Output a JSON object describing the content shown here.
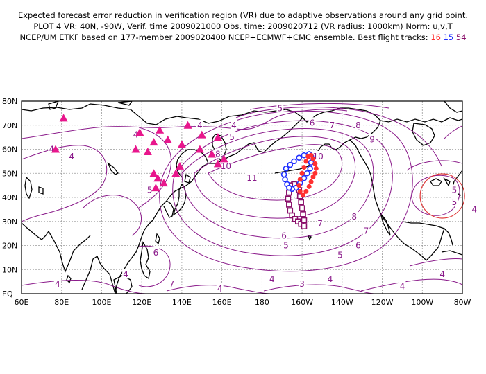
{
  "header": {
    "line1": "Expected forecast error reduction in verification region (VR) due to adaptive observations around any grid point.",
    "line2": "PLOT 4 VR: 40N, -90W, Verif. time 2009021000 Obs. time: 2009020712 (VR radius: 1000km) Norm: u,v,T",
    "line3_prefix": "NCEP/UM ETKF based on 177-member 2009020400 NCEP+ECMWF+CMC ensemble. Best flight tracks:",
    "track_red": "16",
    "track_blue": "15",
    "track_purple": "54"
  },
  "colors": {
    "contour": "#8a1a8a",
    "track_red": "#ff3030",
    "track_blue": "#2030ff",
    "track_purple": "#8a0f6a",
    "triangle": "#e8168c",
    "vr_circle": "#e03a3a",
    "grid": "#9a9a9a"
  },
  "lat_labels": [
    "80N",
    "70N",
    "60N",
    "50N",
    "40N",
    "30N",
    "20N",
    "10N",
    "EQ"
  ],
  "lon_labels": [
    "60E",
    "80E",
    "100E",
    "120E",
    "140E",
    "160E",
    "180",
    "160W",
    "140W",
    "120W",
    "100W",
    "80W"
  ],
  "contour_labels": [
    {
      "text": "4",
      "lon": 75,
      "lat": 60
    },
    {
      "text": "4",
      "lon": 85,
      "lat": 57
    },
    {
      "text": "4",
      "lon": 117,
      "lat": 66
    },
    {
      "text": "4",
      "lon": 149,
      "lat": 70
    },
    {
      "text": "4",
      "lon": 166,
      "lat": 70
    },
    {
      "text": "5",
      "lon": 165,
      "lat": 65
    },
    {
      "text": "5",
      "lon": 189,
      "lat": 77
    },
    {
      "text": "6",
      "lon": 205,
      "lat": 71
    },
    {
      "text": "7",
      "lon": 215,
      "lat": 70
    },
    {
      "text": "8",
      "lon": 228,
      "lat": 70
    },
    {
      "text": "9",
      "lon": 235,
      "lat": 64
    },
    {
      "text": "10",
      "lon": 208,
      "lat": 57
    },
    {
      "text": "11",
      "lon": 175,
      "lat": 48
    },
    {
      "text": "10",
      "lon": 162,
      "lat": 53
    },
    {
      "text": "8",
      "lon": 158,
      "lat": 58
    },
    {
      "text": "5",
      "lon": 276,
      "lat": 43
    },
    {
      "text": "5",
      "lon": 276,
      "lat": 38
    },
    {
      "text": "4",
      "lon": 286,
      "lat": 35
    },
    {
      "text": "5",
      "lon": 124,
      "lat": 43
    },
    {
      "text": "8",
      "lon": 226,
      "lat": 32
    },
    {
      "text": "7",
      "lon": 209,
      "lat": 29
    },
    {
      "text": "7",
      "lon": 232,
      "lat": 26
    },
    {
      "text": "6",
      "lon": 191,
      "lat": 24
    },
    {
      "text": "6",
      "lon": 228,
      "lat": 20
    },
    {
      "text": "5",
      "lon": 192,
      "lat": 20
    },
    {
      "text": "5",
      "lon": 219,
      "lat": 16
    },
    {
      "text": "6",
      "lon": 127,
      "lat": 17
    },
    {
      "text": "4",
      "lon": 78,
      "lat": 4
    },
    {
      "text": "4",
      "lon": 112,
      "lat": 8
    },
    {
      "text": "7",
      "lon": 135,
      "lat": 4
    },
    {
      "text": "4",
      "lon": 159,
      "lat": 2
    },
    {
      "text": "4",
      "lon": 185,
      "lat": 6
    },
    {
      "text": "3",
      "lon": 200,
      "lat": 4
    },
    {
      "text": "4",
      "lon": 214,
      "lat": 6
    },
    {
      "text": "4",
      "lon": 250,
      "lat": 3
    },
    {
      "text": "4",
      "lon": 270,
      "lat": 8
    }
  ],
  "triangles": [
    {
      "lon": 81,
      "lat": 73
    },
    {
      "lon": 77,
      "lat": 60
    },
    {
      "lon": 119,
      "lat": 67
    },
    {
      "lon": 129,
      "lat": 68
    },
    {
      "lon": 143,
      "lat": 70
    },
    {
      "lon": 150,
      "lat": 66
    },
    {
      "lon": 158,
      "lat": 65
    },
    {
      "lon": 117,
      "lat": 60
    },
    {
      "lon": 126,
      "lat": 63
    },
    {
      "lon": 123,
      "lat": 59
    },
    {
      "lon": 133,
      "lat": 64
    },
    {
      "lon": 140,
      "lat": 62
    },
    {
      "lon": 149,
      "lat": 60
    },
    {
      "lon": 155,
      "lat": 58
    },
    {
      "lon": 158,
      "lat": 54
    },
    {
      "lon": 161,
      "lat": 56
    },
    {
      "lon": 126,
      "lat": 50
    },
    {
      "lon": 128,
      "lat": 48
    },
    {
      "lon": 127,
      "lat": 44
    },
    {
      "lon": 131,
      "lat": 46
    },
    {
      "lon": 137,
      "lat": 50
    },
    {
      "lon": 139,
      "lat": 53
    }
  ],
  "track_red_points": [
    [
      -155.5,
      57.5
    ],
    [
      -154.5,
      56
    ],
    [
      -153.5,
      54
    ],
    [
      -153,
      52
    ],
    [
      -153.5,
      50
    ],
    [
      -154.5,
      48.5
    ],
    [
      -155.5,
      46.5
    ],
    [
      -156.5,
      44.5
    ],
    [
      -158,
      42.5
    ],
    [
      -159.5,
      41
    ],
    [
      -161,
      42.5
    ],
    [
      -161.5,
      45
    ],
    [
      -161,
      47.5
    ],
    [
      -160,
      50
    ],
    [
      -159,
      52.5
    ],
    [
      -158,
      55
    ],
    [
      -157,
      57
    ]
  ],
  "track_blue_points": [
    [
      -167.5,
      45.5
    ],
    [
      -168.5,
      47.5
    ],
    [
      -169,
      49.5
    ],
    [
      -168,
      52
    ],
    [
      -166,
      53.5
    ],
    [
      -164,
      55
    ],
    [
      -161.5,
      56.5
    ],
    [
      -159,
      57.5
    ],
    [
      -156.5,
      58
    ],
    [
      -155.5,
      57
    ],
    [
      -155.5,
      54.5
    ],
    [
      -156,
      52
    ],
    [
      -157.5,
      50
    ],
    [
      -159,
      48
    ],
    [
      -161,
      46
    ],
    [
      -163,
      44
    ],
    [
      -165,
      43.5
    ],
    [
      -166.5,
      44
    ]
  ],
  "track_purple_points": [
    [
      -166,
      44
    ],
    [
      -166.5,
      42
    ],
    [
      -167,
      39.5
    ],
    [
      -166.5,
      37
    ],
    [
      -166,
      34.5
    ],
    [
      -165,
      32.5
    ],
    [
      -163.5,
      31
    ],
    [
      -162,
      30
    ],
    [
      -160.5,
      29
    ],
    [
      -159,
      28
    ],
    [
      -159,
      30.5
    ],
    [
      -159.5,
      33
    ],
    [
      -160,
      35.5
    ],
    [
      -160.5,
      38
    ],
    [
      -161,
      40.5
    ],
    [
      -161.5,
      43
    ],
    [
      -162,
      45
    ],
    [
      -164,
      45.5
    ],
    [
      -166,
      45
    ]
  ],
  "vr_circle": {
    "lon": -90,
    "lat": 40
  }
}
